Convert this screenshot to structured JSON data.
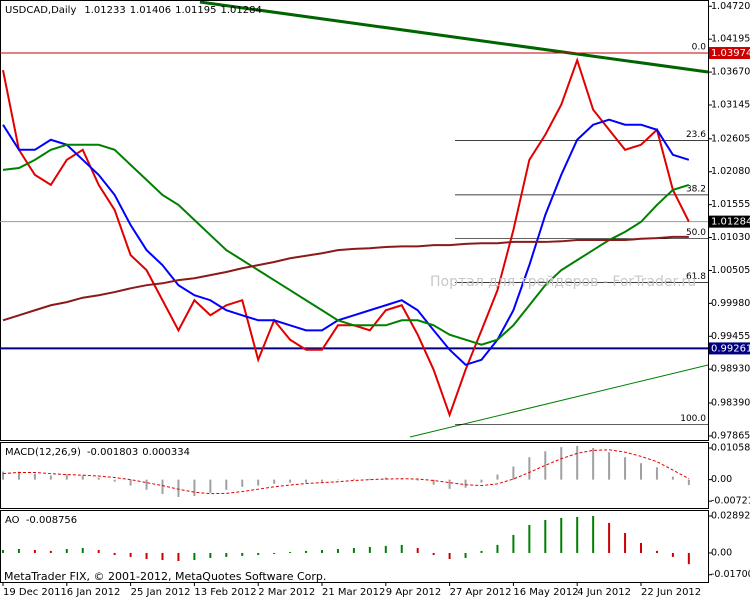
{
  "chart_data": [
    {
      "type": "line",
      "title": "USDCAD,Daily",
      "ohlc": [
        1.01233,
        1.01406,
        1.01195,
        1.01284
      ],
      "categories": [
        "19 Dec 2011",
        null,
        null,
        null,
        "6 Jan 2012",
        null,
        null,
        null,
        "25 Jan 2012",
        null,
        null,
        null,
        "13 Feb 2012",
        null,
        null,
        null,
        "2 Mar 2012",
        null,
        null,
        null,
        "21 Mar 2012",
        null,
        null,
        null,
        "9 Apr 2012",
        null,
        null,
        null,
        "27 Apr 2012",
        null,
        null,
        null,
        "16 May 2012",
        null,
        null,
        null,
        "4 Jun 2012",
        null,
        null,
        null,
        "22 Jun 2012",
        null,
        null,
        null
      ],
      "series": [
        {
          "color": "#e00000",
          "values": [
            1.037,
            1.0243,
            1.0203,
            1.0187,
            1.0227,
            1.0243,
            1.0187,
            1.0147,
            1.0075,
            1.0051,
            1.0003,
            0.9955,
            1.0003,
            0.9979,
            0.9995,
            1.0003,
            0.9908,
            0.9971,
            0.994,
            0.9924,
            0.9924,
            0.9963,
            0.9963,
            0.9955,
            0.9987,
            0.9995,
            0.9948,
            0.9892,
            0.982,
            0.9892,
            0.9955,
            1.0019,
            1.0115,
            1.0227,
            1.0267,
            1.0315,
            1.0386,
            1.0307,
            1.0275,
            1.0243,
            1.0251,
            1.0275,
            1.0179,
            1.01284
          ]
        },
        {
          "color": "#0000ff",
          "values": [
            1.0283,
            1.0243,
            1.0243,
            1.0259,
            1.0251,
            1.0227,
            1.0203,
            1.0171,
            1.0123,
            1.0083,
            1.0059,
            1.0027,
            1.0011,
            1.0003,
            0.9987,
            0.9979,
            0.9971,
            0.9971,
            0.9963,
            0.9955,
            0.9955,
            0.9971,
            0.9979,
            0.9987,
            0.9995,
            1.0003,
            0.9987,
            0.9955,
            0.9924,
            0.99,
            0.9908,
            0.994,
            0.9987,
            1.0059,
            1.0139,
            1.0203,
            1.0259,
            1.0283,
            1.0291,
            1.0283,
            1.0283,
            1.0275,
            1.0235,
            1.0227
          ]
        },
        {
          "color": "#008000",
          "values": [
            1.0211,
            1.0214,
            1.0227,
            1.0243,
            1.0251,
            1.0251,
            1.0251,
            1.0243,
            1.0219,
            1.0195,
            1.0171,
            1.0155,
            1.0131,
            1.0107,
            1.0083,
            1.0067,
            1.0051,
            1.0035,
            1.0019,
            1.0003,
            0.9987,
            0.9971,
            0.9963,
            0.9963,
            0.9963,
            0.9971,
            0.9971,
            0.9963,
            0.9948,
            0.994,
            0.9932,
            0.994,
            0.9963,
            0.9995,
            1.0027,
            1.0051,
            1.0067,
            1.0083,
            1.0099,
            1.0112,
            1.0128,
            1.0155,
            1.0179,
            1.0187
          ]
        },
        {
          "color": "#8b1a1a",
          "values": [
            0.9971,
            0.9979,
            0.9987,
            0.9995,
            1.0,
            1.0007,
            1.0011,
            1.0016,
            1.0022,
            1.0027,
            1.003,
            1.0035,
            1.0038,
            1.0043,
            1.0048,
            1.0054,
            1.0059,
            1.0064,
            1.007,
            1.0074,
            1.0078,
            1.0083,
            1.0085,
            1.0086,
            1.0088,
            1.0089,
            1.0089,
            1.0091,
            1.0091,
            1.0093,
            1.0094,
            1.0094,
            1.0096,
            1.0096,
            1.0096,
            1.0097,
            1.0099,
            1.0099,
            1.0099,
            1.0099,
            1.0101,
            1.0102,
            1.0104,
            1.0104
          ]
        }
      ],
      "ylim": [
        0.978,
        1.0482
      ],
      "yticks": [
        {
          "value": 1.0472,
          "label": "1.04720"
        },
        1.04195,
        {
          "value": 1.0367,
          "label": "1.03670"
        },
        1.03145,
        1.02605,
        {
          "value": 1.0208,
          "label": "1.02080"
        },
        1.01555,
        {
          "value": 1.0103,
          "label": "1.01030"
        },
        1.00505,
        {
          "value": 0.9998,
          "label": "0.99980"
        },
        0.99455,
        {
          "value": 0.9893,
          "label": "0.98930"
        },
        {
          "value": 0.9839,
          "label": "0.98390"
        },
        0.97865
      ],
      "price_lines": [
        {
          "value": 1.03974,
          "color": "#cc0000"
        },
        {
          "value": 1.01284,
          "color": "#000000"
        },
        {
          "value": 0.99261,
          "color": "#000080"
        }
      ],
      "fibonacci": [
        {
          "level": {
            "value": 0,
            "label": "0.0"
          },
          "price": 1.03974
        },
        {
          "level": 23.6,
          "price": 1.02576
        },
        {
          "level": 38.2,
          "price": 1.01711
        },
        {
          "level": {
            "value": 50,
            "label": "50.0"
          },
          "price": 1.01012
        },
        {
          "level": 61.8,
          "price": 1.00313
        },
        {
          "level": {
            "value": 100,
            "label": "100.0"
          },
          "price": 0.9805
        }
      ]
    },
    {
      "type": "macd",
      "title": "MACD(12,26,9)",
      "header_values": [
        -0.001803,
        0.000334
      ],
      "values": [
        0.0027,
        0.0027,
        0.002,
        0.0014,
        0.0017,
        0.0014,
        0.0007,
        -0.0007,
        -0.002,
        -0.0034,
        -0.0048,
        -0.0058,
        -0.0055,
        -0.0044,
        -0.0034,
        -0.0024,
        -0.002,
        -0.0014,
        -0.001,
        -0.001,
        -0.0007,
        0,
        0.0003,
        0.0003,
        0.0007,
        0.0003,
        -0.0003,
        -0.0017,
        -0.0031,
        -0.0027,
        -0.001,
        0.0017,
        0.0044,
        0.0075,
        0.0095,
        0.0109,
        0.0113,
        0.0106,
        0.0092,
        0.0075,
        0.0055,
        0.0041,
        0.001,
        -0.001803
      ],
      "signal": [
        0.002,
        0.0024,
        0.0024,
        0.002,
        0.0017,
        0.0015,
        0.0012,
        0.0007,
        0,
        -0.001,
        -0.002,
        -0.0032,
        -0.0042,
        -0.0047,
        -0.0046,
        -0.004,
        -0.0032,
        -0.0024,
        -0.0018,
        -0.0013,
        -0.001,
        -0.0007,
        -0.0003,
        0,
        0.0002,
        0.0003,
        0.0002,
        -0.0003,
        -0.001,
        -0.0017,
        -0.002,
        -0.0014,
        0.0002,
        0.0024,
        0.0048,
        0.007,
        0.0088,
        0.0098,
        0.01,
        0.0092,
        0.0078,
        0.006,
        0.0032,
        0.000334
      ],
      "color": "#a0a0a0",
      "signal_color": "#e00000",
      "ylim": [
        -0.0095,
        0.0126
      ],
      "yticks": [
        0.010582,
        {
          "value": 0,
          "label": "0.00"
        },
        -0.00721
      ]
    },
    {
      "type": "ao",
      "title": "AO",
      "header_values": [
        -0.008756
      ],
      "values": [
        0.0023,
        0.0031,
        0.0023,
        0.0016,
        0.0031,
        0.0039,
        0.0023,
        -0.0016,
        -0.0031,
        -0.0047,
        -0.0055,
        -0.0063,
        -0.0055,
        -0.0039,
        -0.0031,
        -0.0023,
        -0.0016,
        -0.0008,
        0.0008,
        0.0016,
        0.0023,
        0.0031,
        0.0039,
        0.0047,
        0.0055,
        0.0063,
        0.0039,
        -0.0016,
        -0.0047,
        -0.0039,
        0.0016,
        0.0063,
        0.0141,
        0.0219,
        0.0258,
        0.0274,
        0.0282,
        0.0289,
        0.0235,
        0.0156,
        0.0078,
        0.0016,
        -0.0031,
        -0.008756
      ],
      "up_color": "#008000",
      "down_color": "#cc0000",
      "ylim": [
        -0.0227,
        0.0336
      ],
      "yticks": [
        0.028923,
        {
          "value": 0,
          "label": "0.00"
        },
        {
          "value": -0.017,
          "label": "-0.01700"
        }
      ]
    }
  ],
  "watermark": "Портал для трейдеров - ForTrader.ru",
  "copyright": "MetaTrader FIX, © 2001-2012, MetaQuotes Software Corp."
}
